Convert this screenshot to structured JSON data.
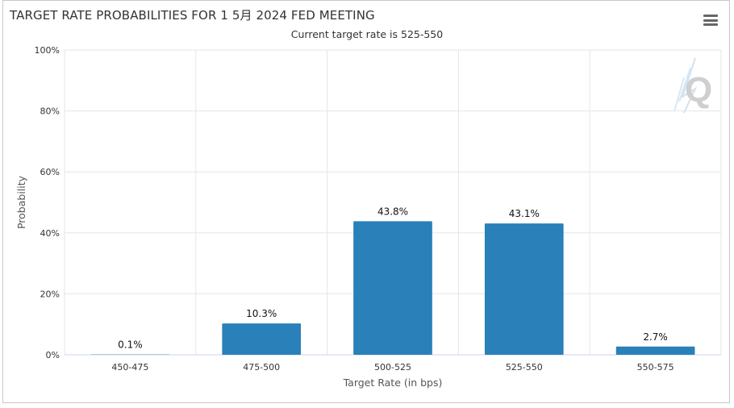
{
  "header": {
    "title": "TARGET RATE PROBABILITIES FOR 1 5月 2024 FED MEETING",
    "subtitle": "Current target rate is 525-550"
  },
  "icons": {
    "menu": "hamburger-menu-icon",
    "watermark": "q-logo-watermark"
  },
  "colors": {
    "bar": "#2a80b9",
    "grid": "#e6e6e6",
    "watermark": "#cfcfcf"
  },
  "chart_data": {
    "type": "bar",
    "title": "TARGET RATE PROBABILITIES FOR 1 5月 2024 FED MEETING",
    "subtitle": "Current target rate is 525-550",
    "categories": [
      "450-475",
      "475-500",
      "500-525",
      "525-550",
      "550-575"
    ],
    "values": [
      0.1,
      10.3,
      43.8,
      43.1,
      2.7
    ],
    "data_labels": [
      "0.1%",
      "10.3%",
      "43.8%",
      "43.1%",
      "2.7%"
    ],
    "y_ticks": [
      "0%",
      "20%",
      "40%",
      "60%",
      "80%",
      "100%"
    ],
    "xlabel": "Target Rate (in bps)",
    "ylabel": "Probability",
    "ylim": [
      0,
      100
    ],
    "grid": true,
    "legend": "none"
  }
}
